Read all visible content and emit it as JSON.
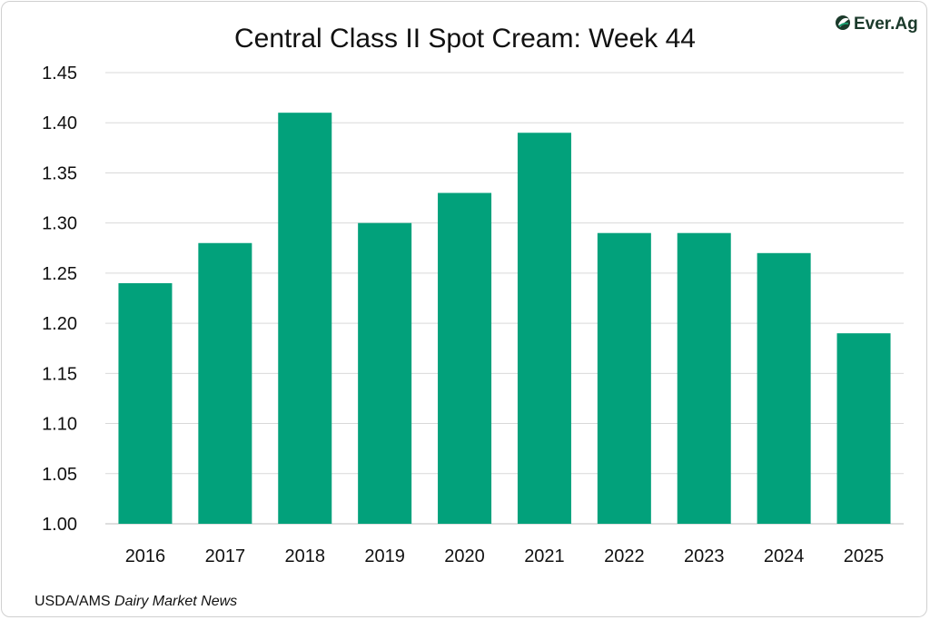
{
  "logo": {
    "text": "Ever.Ag",
    "icon": "ever-ag-leaf-icon",
    "color": "#1b3a2b",
    "accent": "#1a9e6f"
  },
  "source": {
    "prefix": "USDA/AMS ",
    "italic": "Dairy Market News"
  },
  "chart_data": {
    "type": "bar",
    "title": "Central Class II Spot Cream: Week 44",
    "xlabel": "",
    "ylabel": "",
    "categories": [
      "2016",
      "2017",
      "2018",
      "2019",
      "2020",
      "2021",
      "2022",
      "2023",
      "2024",
      "2025"
    ],
    "values": [
      1.24,
      1.28,
      1.41,
      1.3,
      1.33,
      1.39,
      1.29,
      1.29,
      1.27,
      1.19
    ],
    "ylim": [
      1.0,
      1.45
    ],
    "yticks": [
      "1.00",
      "1.05",
      "1.10",
      "1.15",
      "1.20",
      "1.25",
      "1.30",
      "1.35",
      "1.40",
      "1.45"
    ],
    "grid": true,
    "legend": "none",
    "bar_color": "#02a17b"
  }
}
